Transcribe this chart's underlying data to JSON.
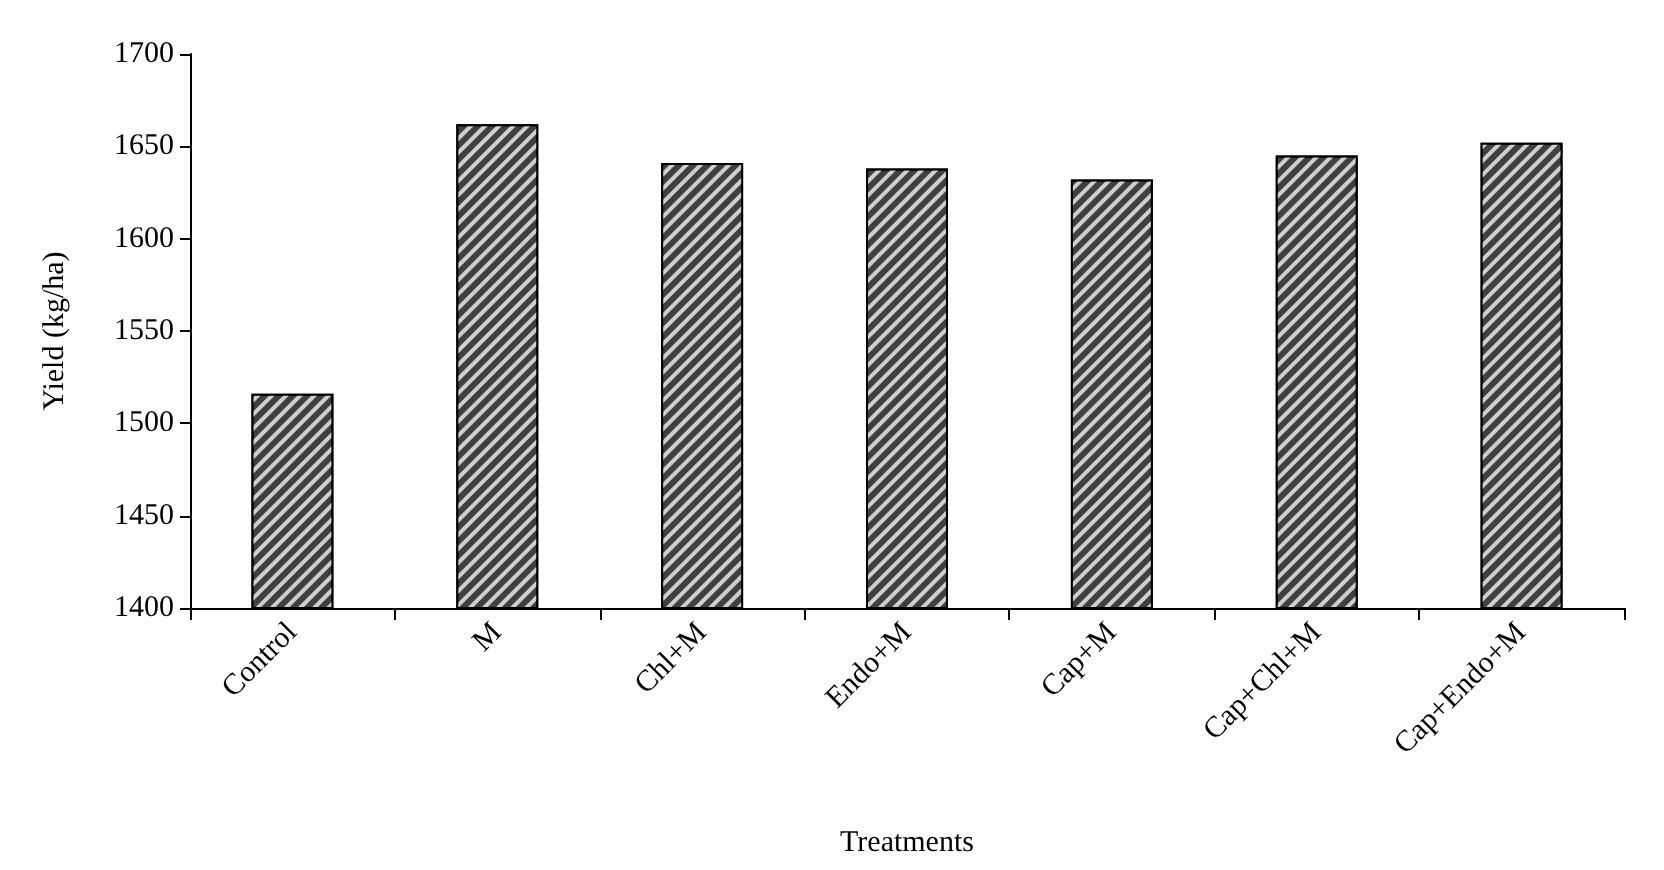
{
  "chart_data": {
    "type": "bar",
    "xlabel": "Treatments",
    "ylabel": "Yield (kg/ha)",
    "categories": [
      "Control",
      "M",
      "Chl+M",
      "Endo+M",
      "Cap+M",
      "Cap+Chl+M",
      "Cap+Endo+M"
    ],
    "values": [
      1516,
      1662,
      1641,
      1638,
      1632,
      1645,
      1652
    ],
    "color": "#404040",
    "ylim": [
      1400,
      1700
    ],
    "yticks": [
      1400,
      1450,
      1500,
      1550,
      1600,
      1650,
      1700
    ],
    "grid": false
  }
}
